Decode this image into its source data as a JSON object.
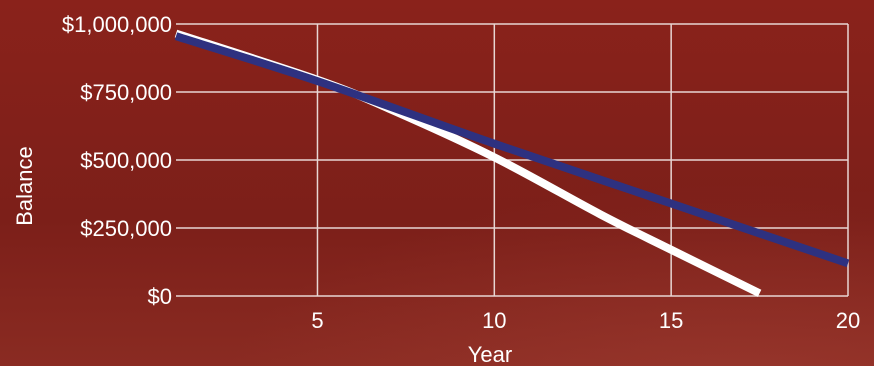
{
  "chart_data": {
    "type": "line",
    "xlabel": "Year",
    "ylabel": "Balance",
    "xlim": [
      1,
      20
    ],
    "ylim": [
      0,
      1000000
    ],
    "x_ticks": [
      5,
      10,
      15,
      20
    ],
    "y_ticks": [
      {
        "value": 0,
        "label": "$0"
      },
      {
        "value": 250000,
        "label": "$250,000"
      },
      {
        "value": 500000,
        "label": "$500,000"
      },
      {
        "value": 750000,
        "label": "$750,000"
      },
      {
        "value": 1000000,
        "label": "$1,000,000"
      }
    ],
    "grid": true,
    "series": [
      {
        "color": "#2e3180",
        "x": [
          1,
          5,
          10,
          15,
          20
        ],
        "y": [
          955000,
          790000,
          560000,
          340000,
          120000
        ]
      },
      {
        "color": "#ffffff",
        "x": [
          1,
          5,
          7,
          10,
          13,
          15,
          17.5
        ],
        "y": [
          965000,
          795000,
          690000,
          510000,
          300000,
          170000,
          10000
        ]
      }
    ]
  },
  "colors": {
    "background": "#7e2019",
    "grid": "#e8d6d3",
    "text": "#ffffff"
  }
}
